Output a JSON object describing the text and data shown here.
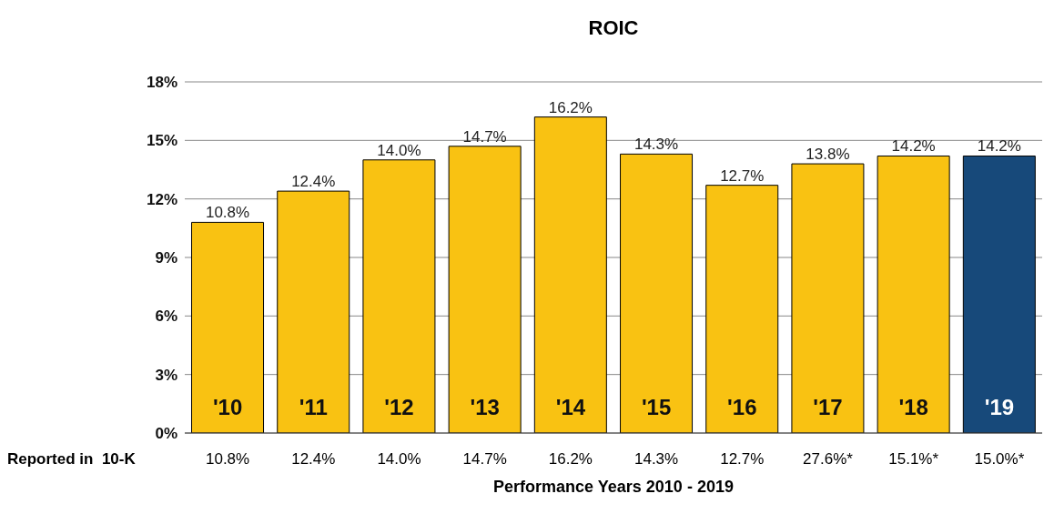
{
  "chart_data": {
    "type": "bar",
    "title": "ROIC",
    "xlabel": "Performance Years 2010 - 2019",
    "categories": [
      "'10",
      "'11",
      "'12",
      "'13",
      "'14",
      "'15",
      "'16",
      "'17",
      "'18",
      "'19"
    ],
    "values": [
      10.8,
      12.4,
      14.0,
      14.7,
      16.2,
      14.3,
      12.7,
      13.8,
      14.2,
      14.2
    ],
    "colors": [
      "#f9c212",
      "#f9c212",
      "#f9c212",
      "#f9c212",
      "#f9c212",
      "#f9c212",
      "#f9c212",
      "#f9c212",
      "#f9c212",
      "#17497a"
    ],
    "value_labels": [
      "10.8%",
      "12.4%",
      "14.0%",
      "14.7%",
      "16.2%",
      "14.3%",
      "12.7%",
      "13.8%",
      "14.2%",
      "14.2%"
    ],
    "ylim": [
      0,
      18
    ],
    "yticks": [
      {
        "value": 0,
        "label": "0%"
      },
      {
        "value": 3,
        "label": "3%"
      },
      {
        "value": 6,
        "label": "6%"
      },
      {
        "value": 9,
        "label": "9%"
      },
      {
        "value": 12,
        "label": "12%"
      },
      {
        "value": 15,
        "label": "15%"
      },
      {
        "value": 18,
        "label": "18%"
      }
    ],
    "grid": "y",
    "annotations": [
      "Reported in  10-K",
      "10.8%",
      "12.4%",
      "14.0%",
      "14.7%",
      "16.2%",
      "14.3%",
      "12.7%",
      "27.6%*",
      "15.1%*",
      "15.0%*"
    ]
  }
}
